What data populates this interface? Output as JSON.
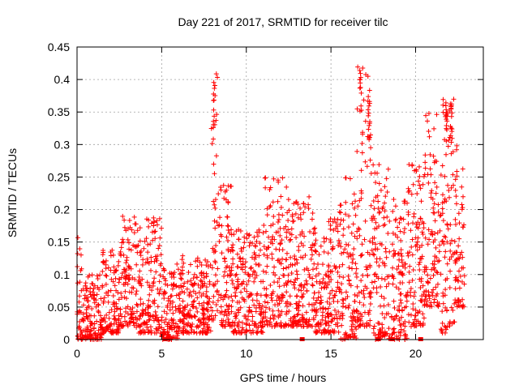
{
  "chart_data": {
    "type": "scatter",
    "title": "Day 221 of 2017, SRMTID for receiver tilc",
    "xlabel": "GPS time / hours",
    "ylabel": "SRMTID / TECUs",
    "xlim": [
      0,
      24
    ],
    "ylim": [
      0,
      0.45
    ],
    "grid": true,
    "marker": "plus",
    "color": "#ff0000",
    "xticks": [
      {
        "value": 0,
        "label": "0"
      },
      {
        "value": 5,
        "label": "5"
      },
      {
        "value": 10,
        "label": "10"
      },
      {
        "value": 15,
        "label": "15"
      },
      {
        "value": 20,
        "label": "20"
      }
    ],
    "yticks": [
      {
        "value": 0,
        "label": "0"
      },
      {
        "value": 0.05,
        "label": "0.05"
      },
      {
        "value": 0.1,
        "label": "0.1"
      },
      {
        "value": 0.15,
        "label": "0.15"
      },
      {
        "value": 0.2,
        "label": "0.2"
      },
      {
        "value": 0.25,
        "label": "0.25"
      },
      {
        "value": 0.3,
        "label": "0.3"
      },
      {
        "value": 0.35,
        "label": "0.35"
      },
      {
        "value": 0.4,
        "label": "0.4"
      },
      {
        "value": 0.45,
        "label": "0.45"
      }
    ],
    "zero_markers_x": [
      5.2,
      13.3,
      17.8,
      18.6,
      20.3
    ],
    "envelope_note": "Dense scatter; points approximated from the visible envelope",
    "envelope": [
      {
        "x0": 0.0,
        "x1": 0.3,
        "ymin": 0.0,
        "ymax": 0.16
      },
      {
        "x0": 0.3,
        "x1": 1.5,
        "ymin": 0.0,
        "ymax": 0.1
      },
      {
        "x0": 1.5,
        "x1": 2.5,
        "ymin": 0.01,
        "ymax": 0.14
      },
      {
        "x0": 2.5,
        "x1": 3.5,
        "ymin": 0.02,
        "ymax": 0.19
      },
      {
        "x0": 3.5,
        "x1": 5.0,
        "ymin": 0.01,
        "ymax": 0.19
      },
      {
        "x0": 5.0,
        "x1": 6.0,
        "ymin": 0.0,
        "ymax": 0.12
      },
      {
        "x0": 6.0,
        "x1": 7.9,
        "ymin": 0.01,
        "ymax": 0.13
      },
      {
        "x0": 7.9,
        "x1": 8.3,
        "ymin": 0.03,
        "ymax": 0.41
      },
      {
        "x0": 8.3,
        "x1": 9.2,
        "ymin": 0.02,
        "ymax": 0.24
      },
      {
        "x0": 9.2,
        "x1": 11.0,
        "ymin": 0.01,
        "ymax": 0.17
      },
      {
        "x0": 11.0,
        "x1": 12.5,
        "ymin": 0.02,
        "ymax": 0.25
      },
      {
        "x0": 12.5,
        "x1": 14.0,
        "ymin": 0.02,
        "ymax": 0.22
      },
      {
        "x0": 14.0,
        "x1": 15.5,
        "ymin": 0.01,
        "ymax": 0.19
      },
      {
        "x0": 15.5,
        "x1": 16.5,
        "ymin": 0.0,
        "ymax": 0.25
      },
      {
        "x0": 16.5,
        "x1": 17.5,
        "ymin": 0.02,
        "ymax": 0.42
      },
      {
        "x0": 17.5,
        "x1": 18.5,
        "ymin": 0.0,
        "ymax": 0.27
      },
      {
        "x0": 18.5,
        "x1": 19.5,
        "ymin": 0.0,
        "ymax": 0.22
      },
      {
        "x0": 19.5,
        "x1": 20.5,
        "ymin": 0.02,
        "ymax": 0.27
      },
      {
        "x0": 20.5,
        "x1": 21.5,
        "ymin": 0.05,
        "ymax": 0.35
      },
      {
        "x0": 21.5,
        "x1": 22.3,
        "ymin": 0.01,
        "ymax": 0.37
      },
      {
        "x0": 22.3,
        "x1": 22.9,
        "ymin": 0.05,
        "ymax": 0.3
      }
    ],
    "peak_clusters": [
      {
        "x": 8.1,
        "ymin": 0.29,
        "ymax": 0.41
      },
      {
        "x": 16.75,
        "ymin": 0.35,
        "ymax": 0.42
      },
      {
        "x": 17.25,
        "ymin": 0.28,
        "ymax": 0.37
      },
      {
        "x": 21.8,
        "ymin": 0.3,
        "ymax": 0.36
      },
      {
        "x": 22.1,
        "ymin": 0.3,
        "ymax": 0.37
      }
    ]
  }
}
